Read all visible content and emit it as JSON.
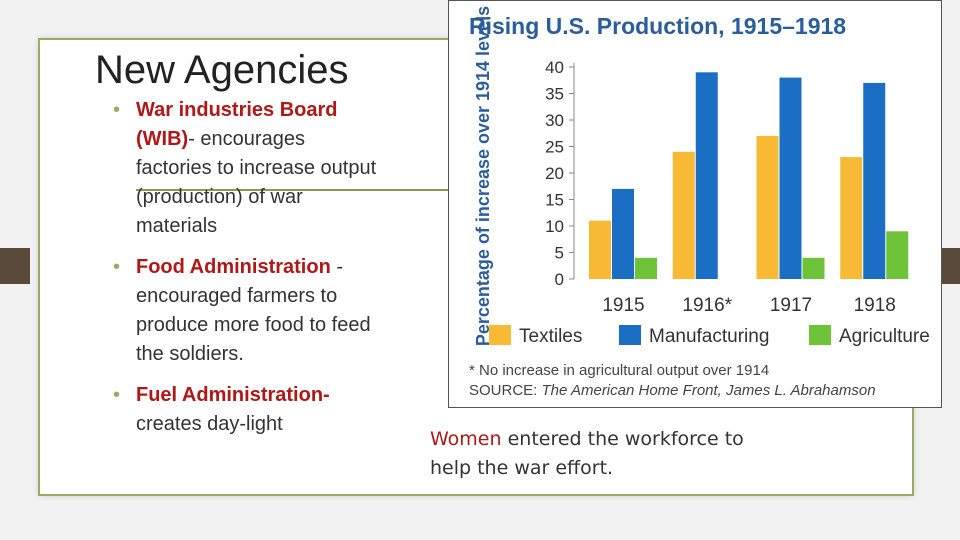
{
  "slide": {
    "title": "New Agencies",
    "bullets": [
      {
        "term": "War industries Board (WIB)",
        "text": "- encourages factories to increase output (production) of war materials"
      },
      {
        "term": "Food Administration",
        "text": " - encouraged farmers to produce more food to feed the soldiers."
      },
      {
        "term": "Fuel Administration-",
        "text": " creates day-light"
      }
    ],
    "caption": {
      "highlight": "Women",
      "rest": " entered the workforce to help the war effort."
    }
  },
  "colors": {
    "textiles": "#f8b934",
    "manufacturing": "#1a6ec4",
    "agriculture": "#6fc339",
    "heading": "#2a5d9c",
    "accent": "#b01818"
  },
  "chart_data": {
    "type": "bar",
    "title": "Rising U.S. Production, 1915–1918",
    "ylabel": "Percentage of increase over 1914 levels",
    "categories": [
      "1915",
      "1916*",
      "1917",
      "1918"
    ],
    "ylim": [
      0,
      40
    ],
    "yticks": [
      "0",
      "5",
      "10",
      "15",
      "20",
      "25",
      "30",
      "35",
      "40"
    ],
    "series": [
      {
        "name": "Textiles",
        "values": [
          11,
          24,
          27,
          23
        ]
      },
      {
        "name": "Manufacturing",
        "values": [
          17,
          39,
          38,
          37
        ]
      },
      {
        "name": "Agriculture",
        "values": [
          4,
          0,
          4,
          9
        ]
      }
    ],
    "legend_position": "bottom",
    "footnote": "* No increase in agricultural output over 1914",
    "source_label": "SOURCE:",
    "source_text": "The American Home Front, James L. Abrahamson"
  }
}
